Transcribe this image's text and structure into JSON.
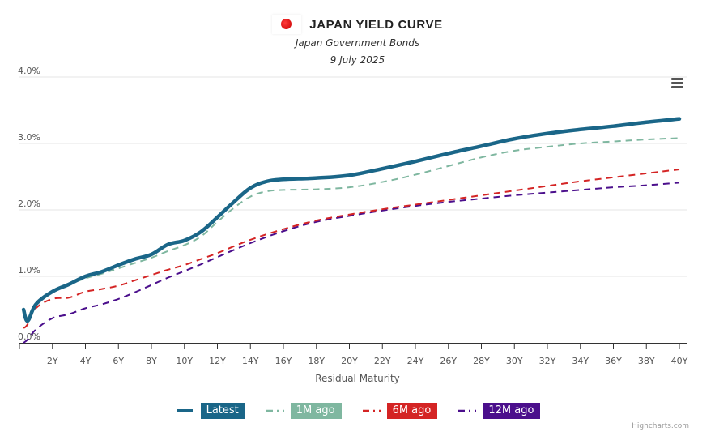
{
  "header": {
    "title": "JAPAN YIELD CURVE",
    "subtitle": "Japan Government Bonds",
    "date": "9 July 2025",
    "flag_icon": "japan-flag-icon"
  },
  "menu": {
    "icon": "hamburger-menu-icon"
  },
  "credits": "Highcharts.com",
  "chart_data": {
    "type": "line",
    "title": "JAPAN YIELD CURVE",
    "subtitle": "Japan Government Bonds — 9 July 2025",
    "xlabel": "Residual Maturity",
    "ylabel": "",
    "xlim": [
      0,
      40
    ],
    "ylim": [
      0,
      4
    ],
    "x_ticks": [
      0,
      2,
      4,
      6,
      8,
      10,
      12,
      14,
      16,
      18,
      20,
      22,
      24,
      26,
      28,
      30,
      32,
      34,
      36,
      38,
      40
    ],
    "x_tick_labels": [
      "",
      "2Y",
      "4Y",
      "6Y",
      "8Y",
      "10Y",
      "12Y",
      "14Y",
      "16Y",
      "18Y",
      "20Y",
      "22Y",
      "24Y",
      "26Y",
      "28Y",
      "30Y",
      "32Y",
      "34Y",
      "36Y",
      "38Y",
      "40Y"
    ],
    "y_ticks": [
      0,
      1,
      2,
      3,
      4
    ],
    "y_tick_labels": [
      "0.0%",
      "1.0%",
      "2.0%",
      "3.0%",
      "4.0%"
    ],
    "grid": true,
    "legend_position": "bottom-center",
    "series": [
      {
        "name": "Latest",
        "color": "#1a6688",
        "style": "solid",
        "x": [
          0.25,
          0.5,
          1,
          2,
          3,
          4,
          5,
          6,
          7,
          8,
          9,
          10,
          11,
          12,
          13,
          14,
          15,
          16,
          18,
          20,
          22,
          24,
          26,
          28,
          30,
          32,
          34,
          36,
          38,
          40
        ],
        "values": [
          0.5,
          0.33,
          0.58,
          0.77,
          0.88,
          1.0,
          1.07,
          1.17,
          1.26,
          1.33,
          1.48,
          1.54,
          1.67,
          1.89,
          2.12,
          2.33,
          2.43,
          2.46,
          2.48,
          2.52,
          2.62,
          2.73,
          2.85,
          2.96,
          3.07,
          3.15,
          3.21,
          3.26,
          3.32,
          3.37
        ]
      },
      {
        "name": "1M ago",
        "color": "#7fb7a0",
        "style": "dash",
        "x": [
          0.25,
          0.5,
          1,
          2,
          3,
          4,
          5,
          6,
          7,
          8,
          9,
          10,
          11,
          12,
          13,
          14,
          15,
          16,
          18,
          20,
          22,
          24,
          26,
          28,
          30,
          32,
          34,
          36,
          38,
          40
        ],
        "values": [
          0.42,
          0.38,
          0.6,
          0.78,
          0.88,
          0.97,
          1.04,
          1.12,
          1.2,
          1.28,
          1.38,
          1.47,
          1.6,
          1.82,
          2.03,
          2.2,
          2.28,
          2.3,
          2.31,
          2.34,
          2.42,
          2.53,
          2.66,
          2.79,
          2.89,
          2.95,
          3.0,
          3.03,
          3.06,
          3.08
        ]
      },
      {
        "name": "6M ago",
        "color": "#d42424",
        "style": "dash",
        "x": [
          0.25,
          0.5,
          1,
          2,
          3,
          4,
          5,
          6,
          7,
          8,
          9,
          10,
          11,
          12,
          14,
          16,
          18,
          20,
          22,
          24,
          26,
          28,
          30,
          32,
          34,
          36,
          38,
          40
        ],
        "values": [
          0.22,
          0.28,
          0.52,
          0.66,
          0.68,
          0.77,
          0.81,
          0.86,
          0.94,
          1.02,
          1.1,
          1.17,
          1.26,
          1.35,
          1.55,
          1.71,
          1.84,
          1.93,
          2.01,
          2.08,
          2.15,
          2.22,
          2.29,
          2.36,
          2.43,
          2.49,
          2.55,
          2.61
        ]
      },
      {
        "name": "12M ago",
        "color": "#4b0f8c",
        "style": "dash",
        "x": [
          0.25,
          0.5,
          1,
          2,
          3,
          4,
          5,
          6,
          7,
          8,
          9,
          10,
          11,
          12,
          14,
          16,
          18,
          20,
          22,
          24,
          26,
          28,
          30,
          32,
          34,
          36,
          38,
          40
        ],
        "values": [
          0.0,
          0.05,
          0.2,
          0.37,
          0.43,
          0.52,
          0.58,
          0.66,
          0.76,
          0.87,
          0.98,
          1.08,
          1.18,
          1.29,
          1.5,
          1.68,
          1.82,
          1.91,
          1.99,
          2.06,
          2.12,
          2.17,
          2.22,
          2.26,
          2.3,
          2.34,
          2.37,
          2.41
        ]
      }
    ]
  }
}
